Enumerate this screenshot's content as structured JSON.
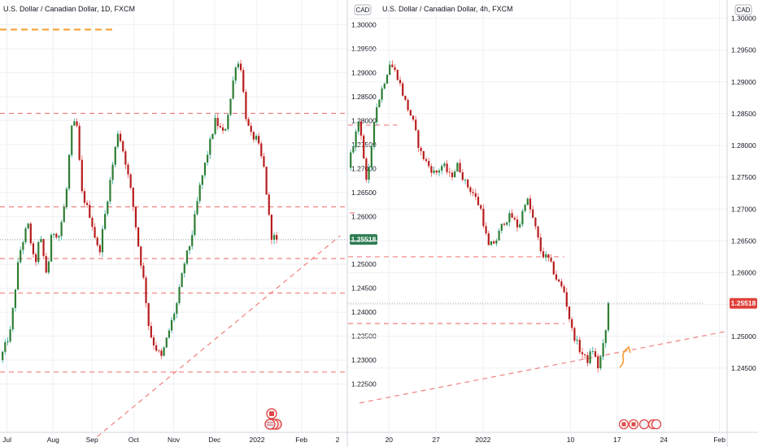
{
  "colors": {
    "up": "#26a69a",
    "down": "#ef5350",
    "up_body": "#2e7d32",
    "down_body": "#b71c1c",
    "level_line": "#f08080",
    "orange_line": "#f59b2f",
    "price_tag_left": "#2e7d52",
    "price_tag_right": "#e0413a",
    "grid": "#eef0f3",
    "axis_text": "#131722"
  },
  "chart_data": [
    {
      "type": "candlestick",
      "title": "U.S. Dollar / Canadian Dollar, 1D, FXCM",
      "currency": "CAD",
      "ylim": [
        1.22,
        1.3
      ],
      "yticks": [
        "1.30000",
        "1.29500",
        "1.29000",
        "1.28500",
        "1.28000",
        "1.27500",
        "1.27000",
        "1.26500",
        "1.26000",
        "1.25500",
        "1.25000",
        "1.24500",
        "1.24000",
        "1.23500",
        "1.23000",
        "1.22500"
      ],
      "xticks": [
        {
          "label": "Jul",
          "pos": 0.02
        },
        {
          "label": "Aug",
          "pos": 0.153
        },
        {
          "label": "Sep",
          "pos": 0.265
        },
        {
          "label": "Oct",
          "pos": 0.385
        },
        {
          "label": "Nov",
          "pos": 0.5
        },
        {
          "label": "Dec",
          "pos": 0.618
        },
        {
          "label": "2022",
          "pos": 0.74
        },
        {
          "label": "Feb",
          "pos": 0.868
        },
        {
          "label": "2",
          "pos": 0.972
        }
      ],
      "last_price": "1.25518",
      "last_value": 1.25518,
      "levels": [
        1.2815,
        1.262,
        1.2512,
        1.244,
        1.2275
      ],
      "orange_level": 1.299,
      "trendline": [
        [
          0.28,
          1.214
        ],
        [
          0.98,
          1.256
        ]
      ],
      "path": [
        [
          0,
          1.23
        ],
        [
          0.03,
          1.236
        ],
        [
          0.055,
          1.252
        ],
        [
          0.08,
          1.2585
        ],
        [
          0.1,
          1.2495
        ],
        [
          0.115,
          1.256
        ],
        [
          0.135,
          1.2475
        ],
        [
          0.15,
          1.257
        ],
        [
          0.17,
          1.256
        ],
        [
          0.19,
          1.264
        ],
        [
          0.205,
          1.278
        ],
        [
          0.22,
          1.28
        ],
        [
          0.235,
          1.265
        ],
        [
          0.26,
          1.26
        ],
        [
          0.285,
          1.252
        ],
        [
          0.31,
          1.264
        ],
        [
          0.34,
          1.278
        ],
        [
          0.36,
          1.272
        ],
        [
          0.38,
          1.264
        ],
        [
          0.4,
          1.253
        ],
        [
          0.415,
          1.246
        ],
        [
          0.43,
          1.236
        ],
        [
          0.445,
          1.233
        ],
        [
          0.465,
          1.2305
        ],
        [
          0.49,
          1.237
        ],
        [
          0.51,
          1.242
        ],
        [
          0.53,
          1.25
        ],
        [
          0.55,
          1.255
        ],
        [
          0.575,
          1.266
        ],
        [
          0.6,
          1.274
        ],
        [
          0.62,
          1.28
        ],
        [
          0.645,
          1.277
        ],
        [
          0.665,
          1.285
        ],
        [
          0.68,
          1.2925
        ],
        [
          0.695,
          1.291
        ],
        [
          0.705,
          1.282
        ],
        [
          0.72,
          1.277
        ],
        [
          0.74,
          1.276
        ],
        [
          0.76,
          1.27
        ],
        [
          0.78,
          1.256
        ],
        [
          0.8,
          1.2552
        ]
      ]
    },
    {
      "type": "candlestick",
      "title": "U.S. Dollar / Canadian Dollar, 4h, FXCM",
      "currency": "CAD",
      "ylim": [
        1.24,
        1.3
      ],
      "yticks": [
        "1.30000",
        "1.29500",
        "1.29000",
        "1.28500",
        "1.28000",
        "1.27500",
        "1.27000",
        "1.26500",
        "1.26000",
        "1.25500",
        "1.25000",
        "1.24500"
      ],
      "xticks": [
        {
          "label": "20",
          "pos": 0.108
        },
        {
          "label": "27",
          "pos": 0.232
        },
        {
          "label": "2022",
          "pos": 0.356
        },
        {
          "label": "10",
          "pos": 0.587
        },
        {
          "label": "17",
          "pos": 0.71
        },
        {
          "label": "24",
          "pos": 0.833
        },
        {
          "label": "Feb",
          "pos": 0.98
        }
      ],
      "last_price": "1.25518",
      "last_value": 1.25518,
      "levels": [
        1.2832,
        1.2625,
        1.252,
        1.2552
      ],
      "level_spans": [
        [
          0.0,
          0.13
        ],
        [
          0.0,
          0.57
        ],
        [
          0.0,
          0.57
        ],
        [
          0.0,
          0.94
        ]
      ],
      "marker_level": 1.2694,
      "trendline": [
        [
          0.03,
          1.2395
        ],
        [
          1.0,
          1.2508
        ]
      ],
      "path": [
        [
          0.0,
          1.2765
        ],
        [
          0.03,
          1.2845
        ],
        [
          0.05,
          1.273
        ],
        [
          0.07,
          1.285
        ],
        [
          0.09,
          1.289
        ],
        [
          0.11,
          1.293
        ],
        [
          0.13,
          1.291
        ],
        [
          0.15,
          1.287
        ],
        [
          0.17,
          1.284
        ],
        [
          0.19,
          1.279
        ],
        [
          0.21,
          1.277
        ],
        [
          0.23,
          1.2755
        ],
        [
          0.25,
          1.277
        ],
        [
          0.27,
          1.275
        ],
        [
          0.29,
          1.277
        ],
        [
          0.31,
          1.274
        ],
        [
          0.33,
          1.2725
        ],
        [
          0.35,
          1.27
        ],
        [
          0.37,
          1.264
        ],
        [
          0.39,
          1.265
        ],
        [
          0.41,
          1.268
        ],
        [
          0.43,
          1.269
        ],
        [
          0.45,
          1.267
        ],
        [
          0.47,
          1.272
        ],
        [
          0.49,
          1.268
        ],
        [
          0.51,
          1.263
        ],
        [
          0.53,
          1.262
        ],
        [
          0.55,
          1.259
        ],
        [
          0.57,
          1.257
        ],
        [
          0.59,
          1.251
        ],
        [
          0.61,
          1.248
        ],
        [
          0.63,
          1.246
        ],
        [
          0.645,
          1.248
        ],
        [
          0.66,
          1.245
        ],
        [
          0.675,
          1.249
        ],
        [
          0.69,
          1.255
        ]
      ]
    }
  ]
}
